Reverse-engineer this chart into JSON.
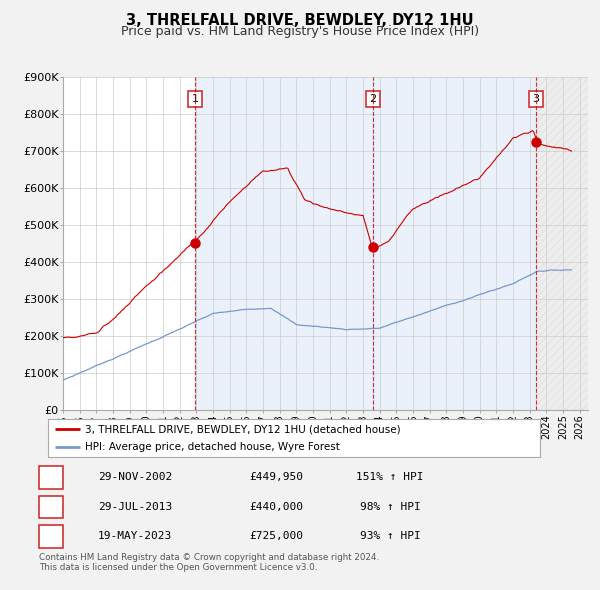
{
  "title": "3, THRELFALL DRIVE, BEWDLEY, DY12 1HU",
  "subtitle": "Price paid vs. HM Land Registry's House Price Index (HPI)",
  "ylim": [
    0,
    900000
  ],
  "xlim_start": 1995.0,
  "xlim_end": 2026.5,
  "background_color": "#f2f2f2",
  "plot_bg_color": "#ffffff",
  "grid_color": "#cccccc",
  "red_line_color": "#cc0000",
  "blue_line_color": "#7799cc",
  "sale_marker_color": "#cc0000",
  "vline_color": "#cc0000",
  "shade_color1": "#dce8f8",
  "shade_color2": "#dce8f8",
  "shade_color3": "#e8e8e8",
  "ytick_labels": [
    "£0",
    "£100K",
    "£200K",
    "£300K",
    "£400K",
    "£500K",
    "£600K",
    "£700K",
    "£800K",
    "£900K"
  ],
  "ytick_values": [
    0,
    100000,
    200000,
    300000,
    400000,
    500000,
    600000,
    700000,
    800000,
    900000
  ],
  "sale1_date": 2002.92,
  "sale1_price": 449950,
  "sale2_date": 2013.58,
  "sale2_price": 440000,
  "sale3_date": 2023.38,
  "sale3_price": 725000,
  "legend_entries": [
    "3, THRELFALL DRIVE, BEWDLEY, DY12 1HU (detached house)",
    "HPI: Average price, detached house, Wyre Forest"
  ],
  "table_data": [
    [
      "1",
      "29-NOV-2002",
      "£449,950",
      "151% ↑ HPI"
    ],
    [
      "2",
      "29-JUL-2013",
      "£440,000",
      "98% ↑ HPI"
    ],
    [
      "3",
      "19-MAY-2023",
      "£725,000",
      "93% ↑ HPI"
    ]
  ],
  "footnote1": "Contains HM Land Registry data © Crown copyright and database right 2024.",
  "footnote2": "This data is licensed under the Open Government Licence v3.0."
}
